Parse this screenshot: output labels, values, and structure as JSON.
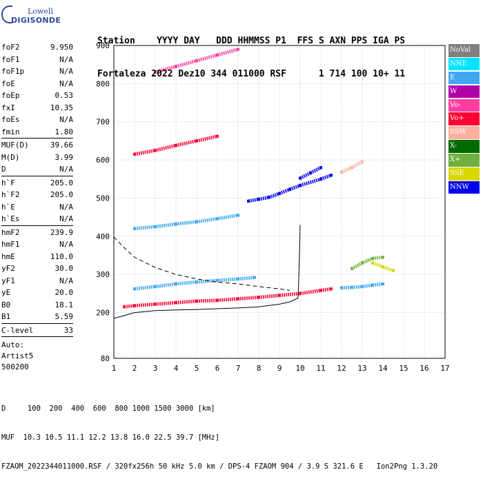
{
  "logo": {
    "line1": "Lowell",
    "line2": "DIGISONDE"
  },
  "header": {
    "line1": "Station    YYYY DAY   DDD HHMMSS P1  FFS S AXN PPS IGA PS",
    "line2": "Fortaleza 2022 Dez10 344 011000 RSF      1 714 100 10+ 11"
  },
  "params": [
    {
      "label": "foF2",
      "value": "9.950"
    },
    {
      "label": "foF1",
      "value": "N/A"
    },
    {
      "label": "foF1p",
      "value": "N/A"
    },
    {
      "label": "foE",
      "value": "N/A"
    },
    {
      "label": "foEp",
      "value": "0.53"
    },
    {
      "label": "fxI",
      "value": "10.35"
    },
    {
      "label": "foEs",
      "value": "N/A"
    },
    {
      "label": "fmin",
      "value": "1.80"
    },
    {
      "sep": true
    },
    {
      "label": "MUF(D)",
      "value": "39.66"
    },
    {
      "label": "M(D)",
      "value": "3.99"
    },
    {
      "label": "D",
      "value": "N/A"
    },
    {
      "sep": true
    },
    {
      "label": "h`F",
      "value": "205.0"
    },
    {
      "label": "h`F2",
      "value": "205.0"
    },
    {
      "label": "h`E",
      "value": "N/A"
    },
    {
      "label": "h`Es",
      "value": "N/A"
    },
    {
      "sep": true
    },
    {
      "label": "hmF2",
      "value": "239.9"
    },
    {
      "label": "hmF1",
      "value": "N/A"
    },
    {
      "label": "hmE",
      "value": "110.0"
    },
    {
      "label": "yF2",
      "value": "30.0"
    },
    {
      "label": "yF1",
      "value": "N/A"
    },
    {
      "label": "yE",
      "value": "20.0"
    },
    {
      "label": "B0",
      "value": "18.1"
    },
    {
      "label": "B1",
      "value": "5.59"
    },
    {
      "sep": true
    },
    {
      "label": "C-level",
      "value": "33"
    },
    {
      "sep": true
    }
  ],
  "auto": [
    "Auto:",
    "Artist5",
    "500200"
  ],
  "footer": {
    "line1": "D     100  200  400  600  800 1000 1500 3000 [km]",
    "line2": "MUF  10.3 10.5 11.1 12.2 13.8 16.0 22.5 39.7 [MHz]",
    "line3": "FZAOM_2022344011000.RSF / 320fx256h 50 kHz 5.0 km / DPS-4 FZAOM 904 / 3.9 S 321.6 E   Ion2Png 1.3.20"
  },
  "legend": [
    {
      "label": "NoVal",
      "color": "#7f7f7f"
    },
    {
      "label": "NNE",
      "color": "#00e5ff"
    },
    {
      "label": "E",
      "color": "#3fa8f0"
    },
    {
      "label": "W",
      "color": "#b000a8"
    },
    {
      "label": "Vo-",
      "color": "#ff3ea0"
    },
    {
      "label": "Vo+",
      "color": "#ff0033"
    },
    {
      "label": "SSW",
      "color": "#ffb0a0"
    },
    {
      "label": "X-",
      "color": "#006a00"
    },
    {
      "label": "X+",
      "color": "#70b040"
    },
    {
      "label": "SSE",
      "color": "#d8d800"
    },
    {
      "label": "NNW",
      "color": "#0000ee"
    }
  ],
  "chart_data": {
    "type": "scatter",
    "title": "",
    "xlabel": "",
    "ylabel": "",
    "xlim": [
      1,
      17
    ],
    "ylim": [
      80,
      900
    ],
    "x_ticks": [
      1,
      2,
      3,
      4,
      5,
      6,
      7,
      8,
      9,
      10,
      11,
      12,
      13,
      14,
      15,
      16,
      17
    ],
    "y_ticks": [
      80,
      200,
      300,
      400,
      500,
      600,
      700,
      800,
      900
    ],
    "grid": true,
    "traces": [
      {
        "series": "Vo+",
        "x": [
          1.5,
          2.0,
          3.0,
          4.0,
          5.0,
          6.0,
          7.0,
          8.0,
          9.0,
          10.0,
          11.0,
          11.5
        ],
        "y": [
          215,
          218,
          222,
          226,
          230,
          232,
          236,
          240,
          245,
          250,
          258,
          262
        ]
      },
      {
        "series": "E",
        "x": [
          2.0,
          3.0,
          4.0,
          5.0,
          6.0,
          7.0,
          7.8
        ],
        "y": [
          262,
          268,
          275,
          280,
          284,
          288,
          292
        ]
      },
      {
        "series": "E",
        "x": [
          12.0,
          12.5,
          13.0,
          13.5,
          14.0
        ],
        "y": [
          265,
          266,
          268,
          272,
          275
        ]
      },
      {
        "series": "NNW",
        "x": [
          7.5,
          8.0,
          8.5,
          9.0,
          9.5,
          10.0,
          11.0,
          11.5
        ],
        "y": [
          492,
          497,
          502,
          512,
          523,
          533,
          550,
          560
        ]
      },
      {
        "series": "NNW",
        "x": [
          10.0,
          10.5,
          11.0
        ],
        "y": [
          552,
          566,
          580
        ]
      },
      {
        "series": "E",
        "x": [
          2.0,
          3.0,
          4.0,
          5.0,
          6.0,
          7.0
        ],
        "y": [
          420,
          425,
          432,
          438,
          446,
          455
        ]
      },
      {
        "series": "Vo+",
        "x": [
          2.0,
          3.0,
          4.0,
          5.0,
          6.0
        ],
        "y": [
          615,
          625,
          638,
          650,
          662
        ]
      },
      {
        "series": "Vo-",
        "x": [
          3.0,
          4.0,
          5.0,
          6.0,
          7.0
        ],
        "y": [
          830,
          845,
          860,
          875,
          890
        ]
      },
      {
        "series": "X+",
        "x": [
          12.5,
          13.0,
          13.5,
          14.0
        ],
        "y": [
          315,
          330,
          342,
          345
        ]
      },
      {
        "series": "SSE",
        "x": [
          13.5,
          14.0,
          14.5
        ],
        "y": [
          330,
          320,
          310
        ]
      },
      {
        "series": "SSW",
        "x": [
          12.0,
          12.5,
          13.0
        ],
        "y": [
          568,
          580,
          595
        ]
      }
    ],
    "curves": [
      {
        "name": "profile",
        "style": "solid",
        "x": [
          1.0,
          1.5,
          2.0,
          3.0,
          4.0,
          5.0,
          6.0,
          7.0,
          8.0,
          9.0,
          9.5,
          9.9,
          9.95,
          10.0
        ],
        "y": [
          185,
          192,
          200,
          205,
          207,
          208,
          210,
          212,
          215,
          222,
          228,
          238,
          320,
          430
        ]
      },
      {
        "name": "extrapolation",
        "style": "dashed",
        "x": [
          1.0,
          1.5,
          2.0,
          3.0,
          4.0,
          5.0,
          6.0,
          7.0,
          8.0,
          9.0,
          9.5
        ],
        "y": [
          398,
          370,
          345,
          318,
          300,
          288,
          280,
          275,
          268,
          262,
          258
        ]
      }
    ]
  }
}
